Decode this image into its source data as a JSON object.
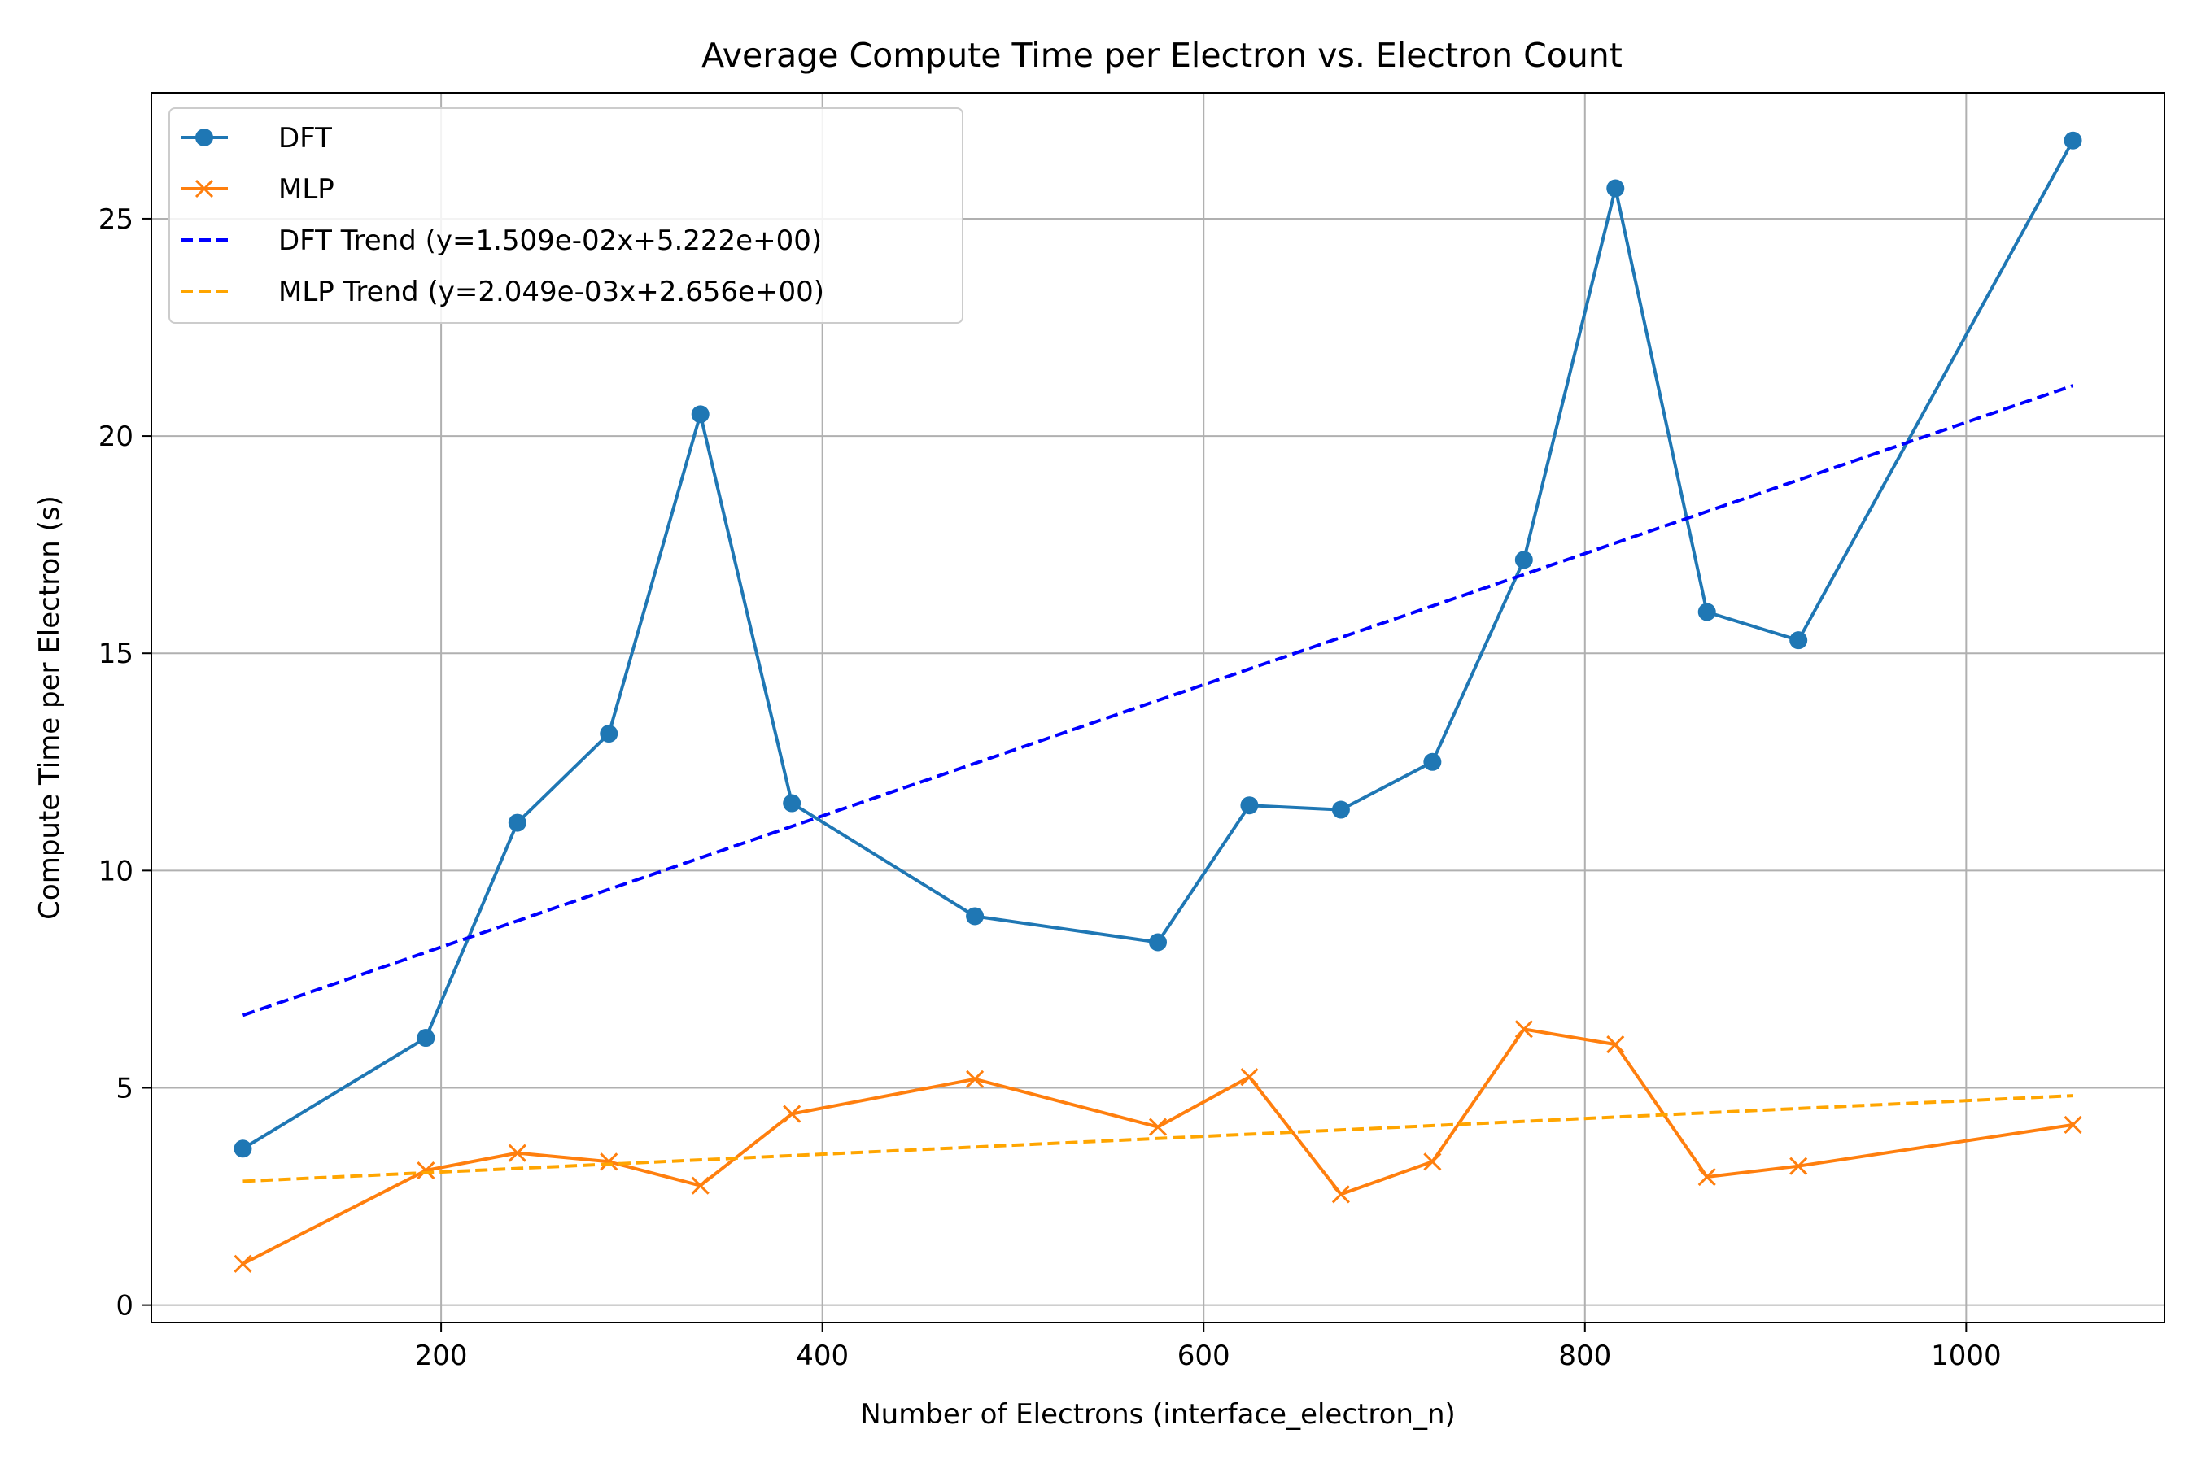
{
  "chart_data": {
    "type": "line",
    "title": "Average Compute Time per Electron vs. Electron Count",
    "xlabel": "Number of Electrons (interface_electron_n)",
    "ylabel": "Compute Time per Electron (s)",
    "xlim": [
      48,
      1104
    ],
    "ylim": [
      -0.4,
      27.9
    ],
    "x_ticks": [
      200,
      400,
      600,
      800,
      1000
    ],
    "y_ticks": [
      0,
      5,
      10,
      15,
      20,
      25
    ],
    "grid": true,
    "legend_position": "top-left",
    "series": [
      {
        "name": "DFT",
        "style": "solid",
        "marker": "circle",
        "color": "#1f77b4",
        "x": [
          96,
          192,
          240,
          288,
          336,
          384,
          480,
          576,
          624,
          672,
          720,
          768,
          816,
          864,
          912,
          1056
        ],
        "values": [
          3.6,
          6.15,
          11.1,
          13.15,
          20.5,
          11.55,
          8.95,
          8.35,
          11.5,
          11.4,
          12.5,
          17.15,
          25.7,
          15.95,
          15.3,
          26.8
        ]
      },
      {
        "name": "MLP",
        "style": "solid",
        "marker": "x",
        "color": "#ff7f0e",
        "x": [
          96,
          192,
          240,
          288,
          336,
          384,
          480,
          576,
          624,
          672,
          720,
          768,
          816,
          864,
          912,
          1056
        ],
        "values": [
          0.95,
          3.1,
          3.5,
          3.3,
          2.75,
          4.4,
          5.2,
          4.1,
          5.25,
          2.55,
          3.3,
          6.35,
          6.0,
          2.95,
          3.2,
          4.15
        ]
      },
      {
        "name": "DFT Trend (y=1.509e-02x+5.222e+00)",
        "style": "dashed",
        "color": "#0000ff",
        "x": [
          96,
          1056
        ],
        "values": [
          6.67,
          21.16
        ]
      },
      {
        "name": "MLP Trend (y=2.049e-03x+2.656e+00)",
        "style": "dashed",
        "color": "#ffa500",
        "x": [
          96,
          1056
        ],
        "values": [
          2.85,
          4.82
        ]
      }
    ]
  }
}
